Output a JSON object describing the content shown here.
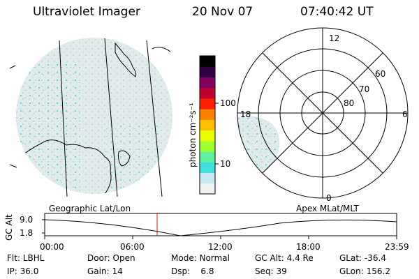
{
  "header": {
    "instrument": "Ultraviolet Imager",
    "date": "20 Nov 07",
    "time": "07:40:42 UT"
  },
  "colorbar": {
    "unit_label": "photon cm⁻²s⁻¹",
    "tick_labels": [
      "100",
      "10"
    ],
    "colors": [
      "#f0f0f0",
      "#c8e8f0",
      "#40e0e0",
      "#60f0a0",
      "#a0ff30",
      "#e8ff00",
      "#ffc000",
      "#ff8000",
      "#ff2000",
      "#c00030",
      "#800060",
      "#300040",
      "#000000"
    ]
  },
  "polar_plot": {
    "lat_labels": [
      "60",
      "70",
      "80"
    ],
    "mlt_labels": [
      "12",
      "18",
      "6",
      "0"
    ]
  },
  "timeline": {
    "left_label": "Geographic Lat/Lon",
    "right_label": "Apex  MLat/MLT",
    "axis_title": "GC Alt",
    "y_ticks": [
      "9.0",
      "1.8"
    ],
    "x_ticks": [
      "00:00",
      "06:00",
      "12:00",
      "18:00",
      "23:59"
    ],
    "marker_time": "07:40:42"
  },
  "status": {
    "rows": [
      [
        {
          "key": "Flt:",
          "value": "LBHL"
        },
        {
          "key": "Door:",
          "value": "Open"
        },
        {
          "key": "Mode:",
          "value": "Normal"
        },
        {
          "key": "GC Alt:",
          "value": "4.4 Re"
        },
        {
          "key": "GLat:",
          "value": "-36.4"
        }
      ],
      [
        {
          "key": "IP:",
          "value": "36.0"
        },
        {
          "key": "Gain:",
          "value": "14"
        },
        {
          "key": "Dsp:",
          "value": "6.8"
        },
        {
          "key": "Seq:",
          "value": "39"
        },
        {
          "key": "GLon:",
          "value": "156.2"
        }
      ]
    ]
  },
  "accent": {
    "marker": "#d01010",
    "speckle": "#30d8d8",
    "glow": "#dde6e6"
  }
}
